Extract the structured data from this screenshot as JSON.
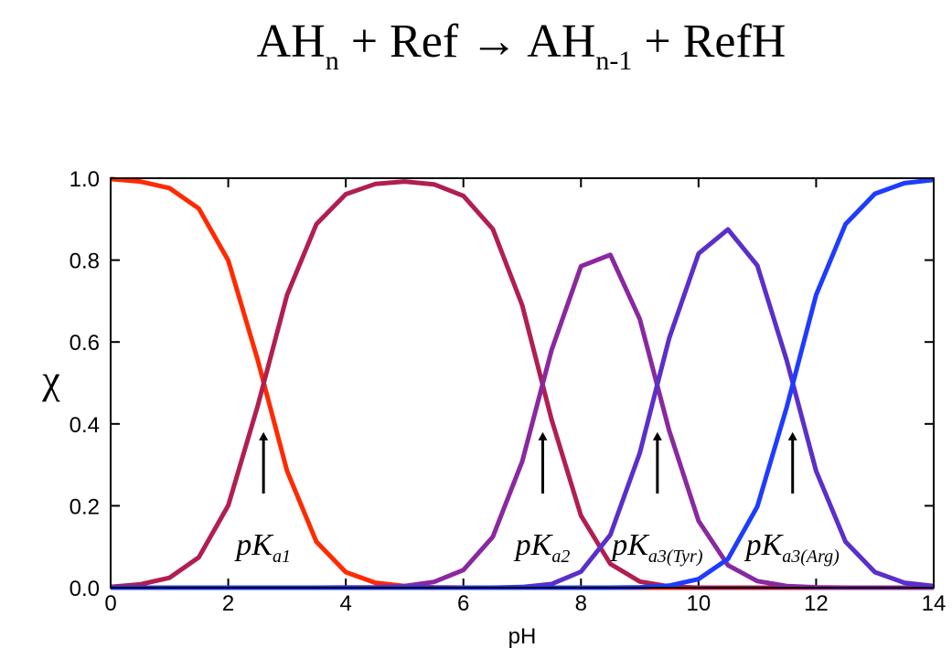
{
  "chart_data": {
    "type": "line",
    "title": [
      {
        "text": "AH"
      },
      {
        "sub": "n"
      },
      {
        "text": " + Ref → AH"
      },
      {
        "sub": "n-1"
      },
      {
        "text": " + RefH"
      }
    ],
    "xlabel": "pH",
    "ylabel": "χ",
    "xlim": [
      0,
      14
    ],
    "ylim": [
      0,
      1
    ],
    "xticks": [
      0,
      2,
      4,
      6,
      8,
      10,
      12,
      14
    ],
    "yticks": [
      {
        "value": 0,
        "label": "0.0"
      },
      {
        "value": 0.2,
        "label": "0.2"
      },
      {
        "value": 0.4,
        "label": "0.4"
      },
      {
        "value": 0.6,
        "label": "0.6"
      },
      {
        "value": 0.8,
        "label": "0.8"
      },
      {
        "value": 1,
        "label": "1.0"
      }
    ],
    "x": [
      0,
      0.5,
      1,
      1.5,
      2,
      2.5,
      3,
      3.5,
      4,
      4.5,
      5,
      5.5,
      6,
      6.5,
      7,
      7.5,
      8,
      8.5,
      9,
      9.5,
      10,
      10.5,
      11,
      11.5,
      12,
      12.5,
      13,
      13.5,
      14
    ],
    "series": [
      {
        "color": "#ff2a00",
        "values": [
          0.998,
          0.992,
          0.976,
          0.926,
          0.799,
          0.557,
          0.285,
          0.112,
          0.038,
          0.012,
          0.004,
          0.001,
          0,
          0,
          0,
          0,
          0,
          0,
          0,
          0,
          0,
          0,
          0,
          0,
          0,
          0,
          0,
          0,
          0
        ]
      },
      {
        "color": "#b11f4e",
        "values": [
          0.002,
          0.008,
          0.024,
          0.074,
          0.201,
          0.443,
          0.715,
          0.888,
          0.961,
          0.986,
          0.992,
          0.985,
          0.957,
          0.876,
          0.69,
          0.411,
          0.176,
          0.058,
          0.015,
          0.003,
          0,
          0,
          0,
          0,
          0,
          0,
          0,
          0,
          0
        ]
      },
      {
        "color": "#8a28a0",
        "values": [
          0,
          0,
          0,
          0,
          0,
          0,
          0,
          0.0001,
          0.0004,
          0.001,
          0.004,
          0.014,
          0.043,
          0.124,
          0.308,
          0.58,
          0.785,
          0.813,
          0.656,
          0.384,
          0.163,
          0.055,
          0.016,
          0.004,
          0.001,
          0,
          0,
          0,
          0
        ]
      },
      {
        "color": "#5a2fca",
        "values": [
          0,
          0,
          0,
          0,
          0,
          0,
          0,
          0,
          0,
          0,
          0,
          0,
          0,
          0,
          0.0015,
          0.009,
          0.039,
          0.129,
          0.329,
          0.609,
          0.816,
          0.875,
          0.787,
          0.555,
          0.285,
          0.112,
          0.038,
          0.012,
          0.004
        ]
      },
      {
        "color": "#1e3cff",
        "values": [
          0,
          0,
          0,
          0,
          0,
          0,
          0,
          0,
          0,
          0,
          0,
          0,
          0,
          0,
          0,
          0,
          0,
          0.0001,
          0.001,
          0.005,
          0.021,
          0.07,
          0.198,
          0.441,
          0.715,
          0.888,
          0.962,
          0.988,
          0.996
        ]
      }
    ],
    "annotations": [
      {
        "x": 2.6,
        "text": "pK",
        "sub": "a1"
      },
      {
        "x": 7.35,
        "text": "pK",
        "sub": "a2"
      },
      {
        "x": 9.3,
        "text": "pK",
        "sub": "a3(Tyr)"
      },
      {
        "x": 11.6,
        "text": "pK",
        "sub": "a3(Arg)"
      }
    ]
  }
}
